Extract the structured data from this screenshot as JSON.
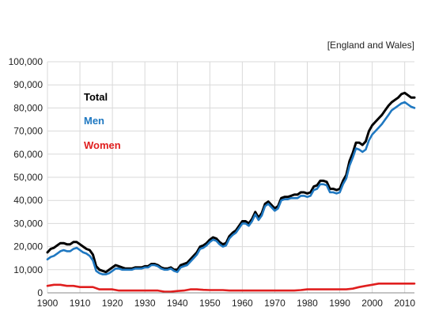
{
  "chart_data": {
    "type": "line",
    "note": "[England and Wales]",
    "xlim": [
      1900,
      2013
    ],
    "ylim": [
      0,
      100000
    ],
    "x_ticks": [
      1900,
      1910,
      1920,
      1930,
      1940,
      1950,
      1960,
      1970,
      1980,
      1990,
      2000,
      2010
    ],
    "y_ticks": [
      0,
      10000,
      20000,
      30000,
      40000,
      50000,
      60000,
      70000,
      80000,
      90000,
      100000
    ],
    "y_tick_labels": [
      "0",
      "10,000",
      "20,000",
      "30,000",
      "40,000",
      "50,000",
      "60,000",
      "70,000",
      "80,000",
      "90,000",
      "100,000"
    ],
    "grid": true,
    "legend_placement": "top-left",
    "series": [
      {
        "name": "Total",
        "color": "#000000",
        "points": [
          [
            1900,
            17500
          ],
          [
            1901,
            19000
          ],
          [
            1902,
            19500
          ],
          [
            1903,
            20500
          ],
          [
            1904,
            21500
          ],
          [
            1905,
            21500
          ],
          [
            1906,
            21000
          ],
          [
            1907,
            21000
          ],
          [
            1908,
            22000
          ],
          [
            1909,
            22000
          ],
          [
            1910,
            21000
          ],
          [
            1911,
            20000
          ],
          [
            1912,
            19000
          ],
          [
            1913,
            18500
          ],
          [
            1914,
            16500
          ],
          [
            1915,
            11500
          ],
          [
            1916,
            10000
          ],
          [
            1917,
            9500
          ],
          [
            1918,
            9000
          ],
          [
            1919,
            10000
          ],
          [
            1920,
            11000
          ],
          [
            1921,
            12000
          ],
          [
            1922,
            11500
          ],
          [
            1923,
            11000
          ],
          [
            1924,
            10500
          ],
          [
            1925,
            10500
          ],
          [
            1926,
            10500
          ],
          [
            1927,
            11000
          ],
          [
            1928,
            11000
          ],
          [
            1929,
            11000
          ],
          [
            1930,
            11500
          ],
          [
            1931,
            11500
          ],
          [
            1932,
            12500
          ],
          [
            1933,
            12500
          ],
          [
            1934,
            12000
          ],
          [
            1935,
            11000
          ],
          [
            1936,
            10500
          ],
          [
            1937,
            10500
          ],
          [
            1938,
            11000
          ],
          [
            1939,
            10000
          ],
          [
            1940,
            10000
          ],
          [
            1941,
            12000
          ],
          [
            1942,
            12500
          ],
          [
            1943,
            13000
          ],
          [
            1944,
            14500
          ],
          [
            1945,
            16000
          ],
          [
            1946,
            17500
          ],
          [
            1947,
            20000
          ],
          [
            1948,
            20500
          ],
          [
            1949,
            21500
          ],
          [
            1950,
            23000
          ],
          [
            1951,
            24000
          ],
          [
            1952,
            23500
          ],
          [
            1953,
            22000
          ],
          [
            1954,
            21000
          ],
          [
            1955,
            21500
          ],
          [
            1956,
            24500
          ],
          [
            1957,
            26000
          ],
          [
            1958,
            27000
          ],
          [
            1959,
            29000
          ],
          [
            1960,
            31000
          ],
          [
            1961,
            31000
          ],
          [
            1962,
            30000
          ],
          [
            1963,
            32000
          ],
          [
            1964,
            35000
          ],
          [
            1965,
            32500
          ],
          [
            1966,
            34500
          ],
          [
            1967,
            38500
          ],
          [
            1968,
            39500
          ],
          [
            1969,
            38000
          ],
          [
            1970,
            36500
          ],
          [
            1971,
            37500
          ],
          [
            1972,
            41000
          ],
          [
            1973,
            41500
          ],
          [
            1974,
            41500
          ],
          [
            1975,
            42000
          ],
          [
            1976,
            42500
          ],
          [
            1977,
            42500
          ],
          [
            1978,
            43500
          ],
          [
            1979,
            43500
          ],
          [
            1980,
            43000
          ],
          [
            1981,
            43500
          ],
          [
            1982,
            46000
          ],
          [
            1983,
            46500
          ],
          [
            1984,
            48500
          ],
          [
            1985,
            48500
          ],
          [
            1986,
            48000
          ],
          [
            1987,
            45000
          ],
          [
            1988,
            45000
          ],
          [
            1989,
            44500
          ],
          [
            1990,
            45000
          ],
          [
            1991,
            48500
          ],
          [
            1992,
            51000
          ],
          [
            1993,
            57000
          ],
          [
            1994,
            60500
          ],
          [
            1995,
            65000
          ],
          [
            1996,
            65000
          ],
          [
            1997,
            64000
          ],
          [
            1998,
            65500
          ],
          [
            1999,
            70000
          ],
          [
            2000,
            72500
          ],
          [
            2001,
            74000
          ],
          [
            2002,
            75500
          ],
          [
            2003,
            77000
          ],
          [
            2004,
            79000
          ],
          [
            2005,
            81000
          ],
          [
            2006,
            82500
          ],
          [
            2007,
            83500
          ],
          [
            2008,
            84500
          ],
          [
            2009,
            86000
          ],
          [
            2010,
            86500
          ],
          [
            2011,
            85500
          ],
          [
            2012,
            84500
          ],
          [
            2013,
            84500
          ]
        ]
      },
      {
        "name": "Men",
        "color": "#1f78c1",
        "points": [
          [
            1900,
            14500
          ],
          [
            1901,
            15500
          ],
          [
            1902,
            16000
          ],
          [
            1903,
            17000
          ],
          [
            1904,
            18000
          ],
          [
            1905,
            18500
          ],
          [
            1906,
            18000
          ],
          [
            1907,
            18000
          ],
          [
            1908,
            19000
          ],
          [
            1909,
            19500
          ],
          [
            1910,
            18500
          ],
          [
            1911,
            17500
          ],
          [
            1912,
            17000
          ],
          [
            1913,
            16000
          ],
          [
            1914,
            14000
          ],
          [
            1915,
            9500
          ],
          [
            1916,
            8500
          ],
          [
            1917,
            8000
          ],
          [
            1918,
            8000
          ],
          [
            1919,
            8500
          ],
          [
            1920,
            9500
          ],
          [
            1921,
            10500
          ],
          [
            1922,
            10500
          ],
          [
            1923,
            10000
          ],
          [
            1924,
            10000
          ],
          [
            1925,
            10000
          ],
          [
            1926,
            10000
          ],
          [
            1927,
            10500
          ],
          [
            1928,
            10500
          ],
          [
            1929,
            10500
          ],
          [
            1930,
            11000
          ],
          [
            1931,
            11000
          ],
          [
            1932,
            12000
          ],
          [
            1933,
            12000
          ],
          [
            1934,
            11500
          ],
          [
            1935,
            10500
          ],
          [
            1936,
            10000
          ],
          [
            1937,
            10000
          ],
          [
            1938,
            10500
          ],
          [
            1939,
            9500
          ],
          [
            1940,
            9000
          ],
          [
            1941,
            11000
          ],
          [
            1942,
            11500
          ],
          [
            1943,
            12000
          ],
          [
            1944,
            13500
          ],
          [
            1945,
            15000
          ],
          [
            1946,
            16500
          ],
          [
            1947,
            19000
          ],
          [
            1948,
            19500
          ],
          [
            1949,
            20500
          ],
          [
            1950,
            22000
          ],
          [
            1951,
            23000
          ],
          [
            1952,
            22500
          ],
          [
            1953,
            21000
          ],
          [
            1954,
            20000
          ],
          [
            1955,
            20500
          ],
          [
            1956,
            23500
          ],
          [
            1957,
            25000
          ],
          [
            1958,
            26000
          ],
          [
            1959,
            28000
          ],
          [
            1960,
            30000
          ],
          [
            1961,
            30000
          ],
          [
            1962,
            29000
          ],
          [
            1963,
            31000
          ],
          [
            1964,
            34000
          ],
          [
            1965,
            31500
          ],
          [
            1966,
            33500
          ],
          [
            1967,
            37500
          ],
          [
            1968,
            38500
          ],
          [
            1969,
            37000
          ],
          [
            1970,
            35500
          ],
          [
            1971,
            36500
          ],
          [
            1972,
            40000
          ],
          [
            1973,
            40500
          ],
          [
            1974,
            40500
          ],
          [
            1975,
            41000
          ],
          [
            1976,
            41000
          ],
          [
            1977,
            41000
          ],
          [
            1978,
            42000
          ],
          [
            1979,
            42000
          ],
          [
            1980,
            41500
          ],
          [
            1981,
            42000
          ],
          [
            1982,
            44500
          ],
          [
            1983,
            45000
          ],
          [
            1984,
            47000
          ],
          [
            1985,
            47000
          ],
          [
            1986,
            46500
          ],
          [
            1987,
            43500
          ],
          [
            1988,
            43500
          ],
          [
            1989,
            43000
          ],
          [
            1990,
            43500
          ],
          [
            1991,
            47000
          ],
          [
            1992,
            49500
          ],
          [
            1993,
            55000
          ],
          [
            1994,
            58500
          ],
          [
            1995,
            62500
          ],
          [
            1996,
            62000
          ],
          [
            1997,
            61000
          ],
          [
            1998,
            62000
          ],
          [
            1999,
            66000
          ],
          [
            2000,
            68500
          ],
          [
            2001,
            70000
          ],
          [
            2002,
            71500
          ],
          [
            2003,
            73000
          ],
          [
            2004,
            75000
          ],
          [
            2005,
            77000
          ],
          [
            2006,
            79000
          ],
          [
            2007,
            80000
          ],
          [
            2008,
            81000
          ],
          [
            2009,
            82000
          ],
          [
            2010,
            82500
          ],
          [
            2011,
            81500
          ],
          [
            2012,
            80500
          ],
          [
            2013,
            80000
          ]
        ]
      },
      {
        "name": "Women",
        "color": "#e01f1f",
        "points": [
          [
            1900,
            3000
          ],
          [
            1902,
            3500
          ],
          [
            1904,
            3500
          ],
          [
            1906,
            3000
          ],
          [
            1908,
            3000
          ],
          [
            1910,
            2500
          ],
          [
            1912,
            2500
          ],
          [
            1914,
            2500
          ],
          [
            1916,
            1500
          ],
          [
            1918,
            1500
          ],
          [
            1920,
            1500
          ],
          [
            1922,
            1000
          ],
          [
            1924,
            1000
          ],
          [
            1926,
            1000
          ],
          [
            1928,
            1000
          ],
          [
            1930,
            1000
          ],
          [
            1932,
            1000
          ],
          [
            1934,
            1000
          ],
          [
            1936,
            500
          ],
          [
            1938,
            500
          ],
          [
            1940,
            800
          ],
          [
            1942,
            1000
          ],
          [
            1944,
            1500
          ],
          [
            1946,
            1500
          ],
          [
            1948,
            1300
          ],
          [
            1950,
            1200
          ],
          [
            1952,
            1200
          ],
          [
            1954,
            1200
          ],
          [
            1956,
            1000
          ],
          [
            1958,
            1000
          ],
          [
            1960,
            1000
          ],
          [
            1962,
            1000
          ],
          [
            1964,
            1000
          ],
          [
            1966,
            1000
          ],
          [
            1968,
            1000
          ],
          [
            1970,
            1000
          ],
          [
            1972,
            1000
          ],
          [
            1974,
            1000
          ],
          [
            1976,
            1000
          ],
          [
            1978,
            1200
          ],
          [
            1980,
            1500
          ],
          [
            1982,
            1500
          ],
          [
            1984,
            1500
          ],
          [
            1986,
            1500
          ],
          [
            1988,
            1500
          ],
          [
            1990,
            1500
          ],
          [
            1992,
            1500
          ],
          [
            1994,
            1800
          ],
          [
            1996,
            2500
          ],
          [
            1998,
            3000
          ],
          [
            2000,
            3500
          ],
          [
            2002,
            4000
          ],
          [
            2004,
            4000
          ],
          [
            2006,
            4000
          ],
          [
            2008,
            4000
          ],
          [
            2010,
            4000
          ],
          [
            2012,
            4000
          ],
          [
            2013,
            4000
          ]
        ]
      }
    ]
  }
}
